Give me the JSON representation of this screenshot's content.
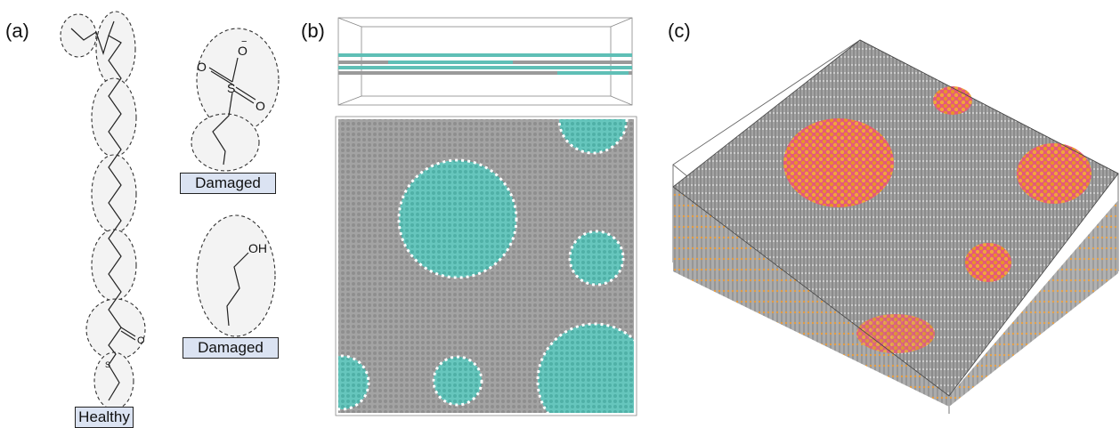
{
  "panels": {
    "a": {
      "label": "(a)"
    },
    "b": {
      "label": "(b)"
    },
    "c": {
      "label": "(c)"
    }
  },
  "molecules": {
    "healthy_tag": "Healthy",
    "damaged_tag_1": "Damaged",
    "damaged_tag_2": "Damaged",
    "sulfonate": {
      "atom_o1": "O",
      "atom_o2": "O",
      "atom_o3": "O",
      "atom_s": "S",
      "charge": "−"
    },
    "hydroxyl": {
      "atom_oh": "OH"
    },
    "thioester": {
      "atom_o": "O",
      "atom_s": "S"
    }
  },
  "colors": {
    "teal": "#5fbfb6",
    "graphite": "#9a9a9a",
    "orange": "#e8942a",
    "pink": "#e5587a",
    "blob_fill": "#f3f3f3",
    "tag_fill": "#dbe3f2"
  }
}
